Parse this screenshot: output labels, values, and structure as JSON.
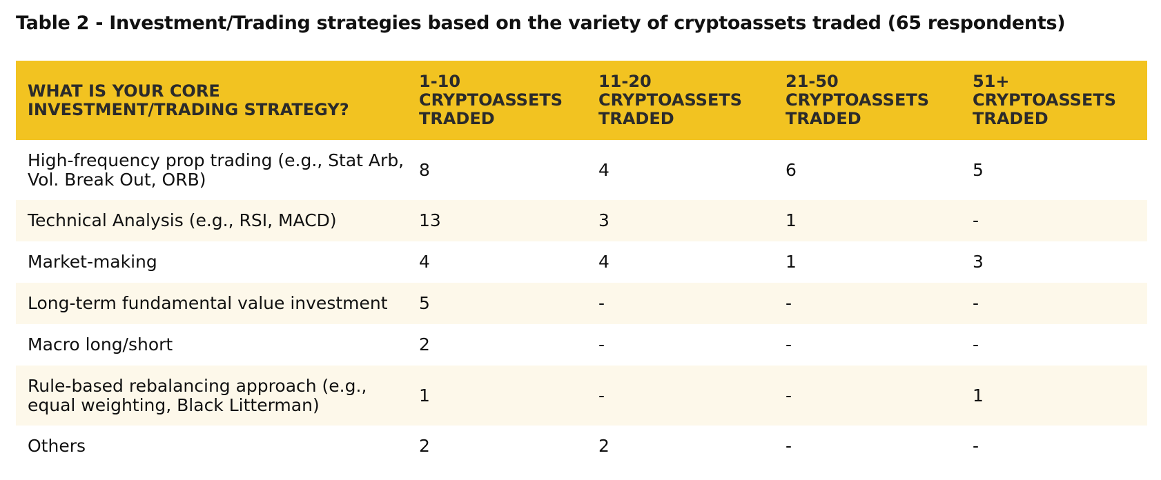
{
  "title": "Table 2 - Investment/Trading strategies based on the variety of cryptoassets traded (65 respondents)",
  "colors": {
    "header_background": "#f2c321",
    "alternate_row_background": "#fdf8ea"
  },
  "table": {
    "headers": [
      "WHAT IS YOUR CORE\nINVESTMENT/TRADING STRATEGY?",
      "1-10\nCRYPTOASSETS\nTRADED",
      "11-20\nCRYPTOASSETS\nTRADED",
      "21-50\nCRYPTOASSETS\nTRADED",
      "51+\nCRYPTOASSETS\nTRADED"
    ],
    "rows": [
      {
        "strategy": "High-frequency prop trading (e.g., Stat Arb,\nVol. Break Out, ORB)",
        "values": [
          "8",
          "4",
          "6",
          "5"
        ]
      },
      {
        "strategy": "Technical Analysis (e.g., RSI, MACD)",
        "values": [
          "13",
          "3",
          "1",
          "-"
        ]
      },
      {
        "strategy": "Market-making",
        "values": [
          "4",
          "4",
          "1",
          "3"
        ]
      },
      {
        "strategy": "Long-term fundamental value investment",
        "values": [
          "5",
          "-",
          "-",
          "-"
        ]
      },
      {
        "strategy": "Macro long/short",
        "values": [
          "2",
          "-",
          "-",
          "-"
        ]
      },
      {
        "strategy": "Rule-based rebalancing approach (e.g.,\nequal weighting, Black Litterman)",
        "values": [
          "1",
          "-",
          "-",
          "1"
        ]
      },
      {
        "strategy": "Others",
        "values": [
          "2",
          "2",
          "-",
          "-"
        ]
      }
    ]
  }
}
